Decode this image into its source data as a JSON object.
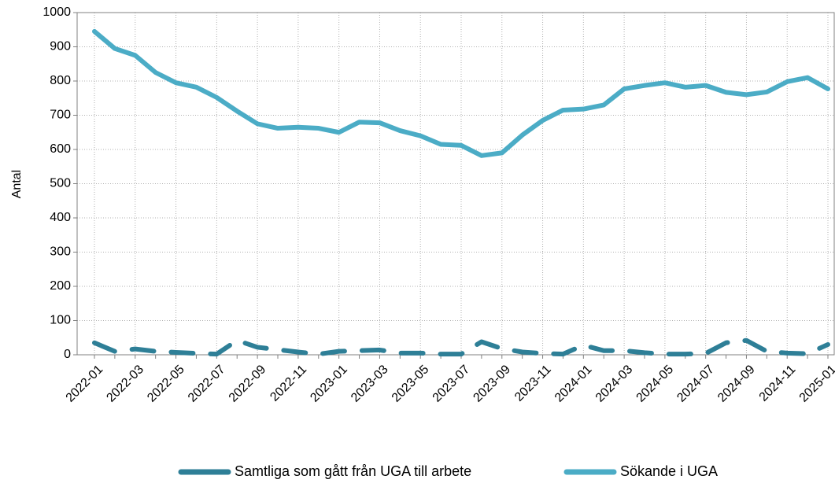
{
  "chart_data": {
    "type": "line",
    "ylabel": "Antal",
    "categories": [
      "2022-01",
      null,
      "2022-03",
      null,
      "2022-05",
      null,
      "2022-07",
      null,
      "2022-09",
      null,
      "2022-11",
      null,
      "2023-01",
      null,
      "2023-03",
      null,
      "2023-05",
      null,
      "2023-07",
      null,
      "2023-09",
      null,
      "2023-11",
      null,
      "2024-01",
      null,
      "2024-03",
      null,
      "2024-05",
      null,
      "2024-07",
      null,
      "2024-09",
      null,
      "2024-11",
      null,
      "2025-01"
    ],
    "series": [
      {
        "name": "Samtliga som gått från UGA till arbete",
        "color": "#2e7f97",
        "dashed": true,
        "values": [
          35,
          10,
          17,
          10,
          7,
          4,
          2,
          42,
          22,
          15,
          8,
          2,
          10,
          12,
          14,
          5,
          5,
          2,
          2,
          38,
          18,
          8,
          4,
          2,
          28,
          12,
          12,
          6,
          2,
          2,
          4,
          35,
          42,
          10,
          5,
          3,
          30
        ]
      },
      {
        "name": "Sökande i UGA",
        "color": "#4bacc6",
        "dashed": false,
        "values": [
          945,
          895,
          875,
          825,
          795,
          782,
          752,
          712,
          675,
          662,
          665,
          662,
          650,
          680,
          678,
          655,
          640,
          615,
          612,
          582,
          590,
          642,
          685,
          715,
          718,
          730,
          777,
          787,
          795,
          782,
          787,
          767,
          760,
          768,
          798,
          810,
          777
        ]
      }
    ],
    "ylim": [
      0,
      1000
    ],
    "yticks": [
      0,
      100,
      200,
      300,
      400,
      500,
      600,
      700,
      800,
      900,
      1000
    ],
    "grid": true,
    "legend": "bottom"
  }
}
